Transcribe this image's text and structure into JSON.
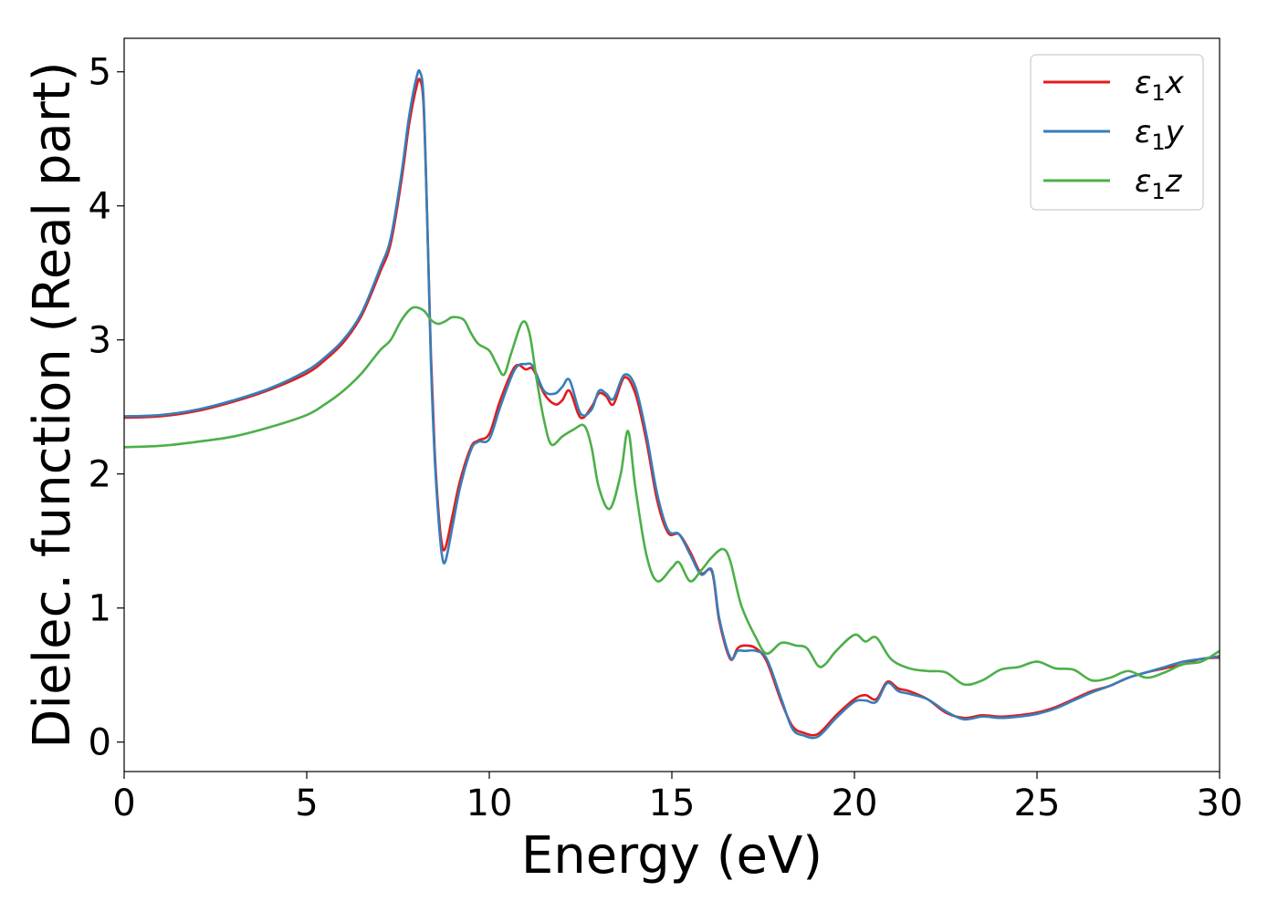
{
  "chart_data": {
    "type": "line",
    "xlabel": "Energy (eV)",
    "ylabel": "Dielec. function (Real part)",
    "xlim": [
      0,
      30
    ],
    "ylim": [
      -0.22,
      5.25
    ],
    "xticks": [
      "0",
      "5",
      "10",
      "15",
      "20",
      "25",
      "30"
    ],
    "yticks": [
      "0",
      "1",
      "2",
      "3",
      "4",
      "5"
    ],
    "legend_position": "top-right",
    "grid": false,
    "series": [
      {
        "name": "ε₁x",
        "legend": {
          "base": "ε",
          "sub": "1",
          "suffix": "x"
        },
        "color": "#e41a1c",
        "points": [
          [
            0,
            2.42
          ],
          [
            1,
            2.43
          ],
          [
            2,
            2.47
          ],
          [
            3,
            2.54
          ],
          [
            4,
            2.63
          ],
          [
            5,
            2.75
          ],
          [
            5.5,
            2.85
          ],
          [
            6,
            2.98
          ],
          [
            6.5,
            3.18
          ],
          [
            7,
            3.5
          ],
          [
            7.3,
            3.72
          ],
          [
            7.6,
            4.2
          ],
          [
            7.8,
            4.6
          ],
          [
            8.0,
            4.88
          ],
          [
            8.1,
            4.94
          ],
          [
            8.2,
            4.75
          ],
          [
            8.3,
            3.9
          ],
          [
            8.4,
            2.9
          ],
          [
            8.5,
            2.2
          ],
          [
            8.6,
            1.75
          ],
          [
            8.7,
            1.48
          ],
          [
            8.8,
            1.45
          ],
          [
            9.0,
            1.7
          ],
          [
            9.2,
            1.95
          ],
          [
            9.5,
            2.2
          ],
          [
            9.7,
            2.25
          ],
          [
            10.0,
            2.3
          ],
          [
            10.3,
            2.55
          ],
          [
            10.7,
            2.8
          ],
          [
            11.0,
            2.78
          ],
          [
            11.2,
            2.78
          ],
          [
            11.5,
            2.6
          ],
          [
            11.8,
            2.52
          ],
          [
            12.0,
            2.55
          ],
          [
            12.2,
            2.62
          ],
          [
            12.5,
            2.42
          ],
          [
            12.8,
            2.5
          ],
          [
            13.0,
            2.6
          ],
          [
            13.2,
            2.58
          ],
          [
            13.4,
            2.52
          ],
          [
            13.7,
            2.72
          ],
          [
            14.0,
            2.6
          ],
          [
            14.3,
            2.25
          ],
          [
            14.6,
            1.8
          ],
          [
            14.9,
            1.56
          ],
          [
            15.2,
            1.55
          ],
          [
            15.5,
            1.42
          ],
          [
            15.8,
            1.26
          ],
          [
            16.1,
            1.27
          ],
          [
            16.3,
            0.9
          ],
          [
            16.6,
            0.62
          ],
          [
            16.8,
            0.7
          ],
          [
            17.0,
            0.72
          ],
          [
            17.3,
            0.7
          ],
          [
            17.6,
            0.6
          ],
          [
            18.0,
            0.3
          ],
          [
            18.3,
            0.12
          ],
          [
            18.6,
            0.07
          ],
          [
            19.0,
            0.06
          ],
          [
            19.5,
            0.2
          ],
          [
            20.0,
            0.32
          ],
          [
            20.3,
            0.35
          ],
          [
            20.6,
            0.32
          ],
          [
            20.9,
            0.45
          ],
          [
            21.2,
            0.4
          ],
          [
            21.5,
            0.38
          ],
          [
            22.0,
            0.32
          ],
          [
            22.5,
            0.22
          ],
          [
            23.0,
            0.18
          ],
          [
            23.5,
            0.2
          ],
          [
            24.0,
            0.19
          ],
          [
            24.5,
            0.2
          ],
          [
            25.0,
            0.22
          ],
          [
            25.5,
            0.26
          ],
          [
            26.0,
            0.32
          ],
          [
            26.5,
            0.38
          ],
          [
            27.0,
            0.42
          ],
          [
            27.5,
            0.48
          ],
          [
            28.0,
            0.52
          ],
          [
            28.5,
            0.55
          ],
          [
            29.0,
            0.58
          ],
          [
            29.5,
            0.62
          ],
          [
            30.0,
            0.63
          ]
        ]
      },
      {
        "name": "ε₁y",
        "legend": {
          "base": "ε",
          "sub": "1",
          "suffix": "y"
        },
        "color": "#377eb8",
        "points": [
          [
            0,
            2.43
          ],
          [
            1,
            2.44
          ],
          [
            2,
            2.48
          ],
          [
            3,
            2.55
          ],
          [
            4,
            2.64
          ],
          [
            5,
            2.77
          ],
          [
            5.5,
            2.87
          ],
          [
            6,
            3.0
          ],
          [
            6.5,
            3.2
          ],
          [
            7,
            3.53
          ],
          [
            7.3,
            3.76
          ],
          [
            7.6,
            4.25
          ],
          [
            7.8,
            4.66
          ],
          [
            8.0,
            4.95
          ],
          [
            8.1,
            5.0
          ],
          [
            8.2,
            4.8
          ],
          [
            8.3,
            3.9
          ],
          [
            8.4,
            2.85
          ],
          [
            8.5,
            2.15
          ],
          [
            8.6,
            1.7
          ],
          [
            8.7,
            1.4
          ],
          [
            8.8,
            1.35
          ],
          [
            9.0,
            1.62
          ],
          [
            9.2,
            1.9
          ],
          [
            9.5,
            2.18
          ],
          [
            9.7,
            2.24
          ],
          [
            10.0,
            2.26
          ],
          [
            10.3,
            2.5
          ],
          [
            10.7,
            2.78
          ],
          [
            11.0,
            2.82
          ],
          [
            11.2,
            2.8
          ],
          [
            11.5,
            2.62
          ],
          [
            11.8,
            2.6
          ],
          [
            12.0,
            2.65
          ],
          [
            12.2,
            2.7
          ],
          [
            12.5,
            2.45
          ],
          [
            12.8,
            2.48
          ],
          [
            13.0,
            2.62
          ],
          [
            13.2,
            2.6
          ],
          [
            13.4,
            2.56
          ],
          [
            13.7,
            2.74
          ],
          [
            14.0,
            2.65
          ],
          [
            14.3,
            2.3
          ],
          [
            14.6,
            1.85
          ],
          [
            14.9,
            1.58
          ],
          [
            15.2,
            1.55
          ],
          [
            15.5,
            1.4
          ],
          [
            15.8,
            1.25
          ],
          [
            16.1,
            1.28
          ],
          [
            16.3,
            0.92
          ],
          [
            16.6,
            0.63
          ],
          [
            16.8,
            0.68
          ],
          [
            17.0,
            0.68
          ],
          [
            17.3,
            0.68
          ],
          [
            17.6,
            0.62
          ],
          [
            18.0,
            0.32
          ],
          [
            18.3,
            0.1
          ],
          [
            18.6,
            0.05
          ],
          [
            19.0,
            0.04
          ],
          [
            19.5,
            0.18
          ],
          [
            20.0,
            0.3
          ],
          [
            20.3,
            0.31
          ],
          [
            20.6,
            0.3
          ],
          [
            20.9,
            0.44
          ],
          [
            21.2,
            0.38
          ],
          [
            21.5,
            0.36
          ],
          [
            22.0,
            0.32
          ],
          [
            22.5,
            0.23
          ],
          [
            23.0,
            0.17
          ],
          [
            23.5,
            0.19
          ],
          [
            24.0,
            0.18
          ],
          [
            24.5,
            0.19
          ],
          [
            25.0,
            0.21
          ],
          [
            25.5,
            0.25
          ],
          [
            26.0,
            0.31
          ],
          [
            26.5,
            0.37
          ],
          [
            27.0,
            0.42
          ],
          [
            27.5,
            0.48
          ],
          [
            28.0,
            0.52
          ],
          [
            28.5,
            0.56
          ],
          [
            29.0,
            0.6
          ],
          [
            29.5,
            0.62
          ],
          [
            30.0,
            0.64
          ]
        ]
      },
      {
        "name": "ε₁z",
        "legend": {
          "base": "ε",
          "sub": "1",
          "suffix": "z"
        },
        "color": "#4daf4a",
        "points": [
          [
            0,
            2.2
          ],
          [
            1,
            2.21
          ],
          [
            2,
            2.24
          ],
          [
            3,
            2.28
          ],
          [
            4,
            2.35
          ],
          [
            5,
            2.44
          ],
          [
            5.5,
            2.52
          ],
          [
            6,
            2.62
          ],
          [
            6.5,
            2.75
          ],
          [
            7,
            2.92
          ],
          [
            7.3,
            3.0
          ],
          [
            7.6,
            3.15
          ],
          [
            7.9,
            3.24
          ],
          [
            8.2,
            3.22
          ],
          [
            8.4,
            3.15
          ],
          [
            8.6,
            3.12
          ],
          [
            8.8,
            3.14
          ],
          [
            9.0,
            3.17
          ],
          [
            9.3,
            3.15
          ],
          [
            9.5,
            3.05
          ],
          [
            9.7,
            2.97
          ],
          [
            10.0,
            2.92
          ],
          [
            10.2,
            2.82
          ],
          [
            10.4,
            2.74
          ],
          [
            10.6,
            2.9
          ],
          [
            10.9,
            3.13
          ],
          [
            11.1,
            3.05
          ],
          [
            11.3,
            2.7
          ],
          [
            11.5,
            2.4
          ],
          [
            11.7,
            2.22
          ],
          [
            12.0,
            2.28
          ],
          [
            12.3,
            2.33
          ],
          [
            12.6,
            2.36
          ],
          [
            12.8,
            2.2
          ],
          [
            13.0,
            1.9
          ],
          [
            13.3,
            1.74
          ],
          [
            13.6,
            2.0
          ],
          [
            13.8,
            2.32
          ],
          [
            14.0,
            1.9
          ],
          [
            14.3,
            1.4
          ],
          [
            14.6,
            1.2
          ],
          [
            15.0,
            1.3
          ],
          [
            15.2,
            1.34
          ],
          [
            15.5,
            1.2
          ],
          [
            15.8,
            1.28
          ],
          [
            16.1,
            1.38
          ],
          [
            16.4,
            1.44
          ],
          [
            16.6,
            1.35
          ],
          [
            16.9,
            1.02
          ],
          [
            17.3,
            0.78
          ],
          [
            17.6,
            0.66
          ],
          [
            18.0,
            0.74
          ],
          [
            18.4,
            0.72
          ],
          [
            18.7,
            0.7
          ],
          [
            19.0,
            0.57
          ],
          [
            19.2,
            0.58
          ],
          [
            19.5,
            0.68
          ],
          [
            20.0,
            0.8
          ],
          [
            20.3,
            0.75
          ],
          [
            20.6,
            0.78
          ],
          [
            21.0,
            0.62
          ],
          [
            21.5,
            0.55
          ],
          [
            22.0,
            0.53
          ],
          [
            22.5,
            0.52
          ],
          [
            23.0,
            0.43
          ],
          [
            23.5,
            0.46
          ],
          [
            24.0,
            0.54
          ],
          [
            24.5,
            0.56
          ],
          [
            25.0,
            0.6
          ],
          [
            25.5,
            0.55
          ],
          [
            26.0,
            0.54
          ],
          [
            26.5,
            0.46
          ],
          [
            27.0,
            0.48
          ],
          [
            27.5,
            0.53
          ],
          [
            28.0,
            0.48
          ],
          [
            28.5,
            0.52
          ],
          [
            29.0,
            0.58
          ],
          [
            29.5,
            0.6
          ],
          [
            30.0,
            0.68
          ]
        ]
      }
    ]
  }
}
